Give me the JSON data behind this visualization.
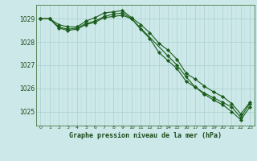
{
  "title": "Graphe pression niveau de la mer (hPa)",
  "background_color": "#cce8e8",
  "grid_color_major": "#aacfcf",
  "grid_color_minor": "#bbdada",
  "line_color": "#1a5c1a",
  "marker_color": "#1a5c1a",
  "xlim": [
    -0.5,
    23.5
  ],
  "ylim": [
    1024.4,
    1029.6
  ],
  "yticks": [
    1025,
    1026,
    1027,
    1028,
    1029
  ],
  "xticks": [
    0,
    1,
    2,
    3,
    4,
    5,
    6,
    7,
    8,
    9,
    10,
    11,
    12,
    13,
    14,
    15,
    16,
    17,
    18,
    19,
    20,
    21,
    22,
    23
  ],
  "series": [
    {
      "x": [
        0,
        1,
        2,
        3,
        4,
        5,
        6,
        7,
        8,
        9,
        10,
        11,
        12,
        13,
        14,
        15,
        16,
        17,
        18,
        19,
        20,
        21,
        22,
        23
      ],
      "y": [
        1029.0,
        1029.0,
        1028.75,
        1028.65,
        1028.65,
        1028.9,
        1029.05,
        1029.25,
        1029.3,
        1029.35,
        1029.05,
        1028.75,
        1028.4,
        1027.95,
        1027.65,
        1027.25,
        1026.65,
        1026.4,
        1026.1,
        1025.85,
        1025.65,
        1025.35,
        1024.9,
        1025.4
      ]
    },
    {
      "x": [
        0,
        1,
        2,
        3,
        4,
        5,
        6,
        7,
        8,
        9,
        10,
        11,
        12,
        13,
        14,
        15,
        16,
        17,
        18,
        19,
        20,
        21,
        22,
        23
      ],
      "y": [
        1029.0,
        1029.0,
        1028.6,
        1028.5,
        1028.55,
        1028.75,
        1028.85,
        1029.05,
        1029.1,
        1029.15,
        1029.0,
        1028.55,
        1028.15,
        1027.55,
        1027.2,
        1026.85,
        1026.3,
        1026.05,
        1025.75,
        1025.5,
        1025.3,
        1025.0,
        1024.65,
        1025.2
      ]
    },
    {
      "x": [
        0,
        1,
        2,
        3,
        4,
        5,
        6,
        7,
        8,
        9,
        10,
        14,
        15,
        16,
        17,
        18,
        19,
        20,
        21,
        22,
        23
      ],
      "y": [
        1029.0,
        1029.0,
        1028.65,
        1028.55,
        1028.6,
        1028.8,
        1028.9,
        1029.1,
        1029.2,
        1029.25,
        1029.0,
        1027.4,
        1027.0,
        1026.5,
        1026.05,
        1025.8,
        1025.6,
        1025.4,
        1025.2,
        1024.75,
        1025.35
      ]
    }
  ]
}
